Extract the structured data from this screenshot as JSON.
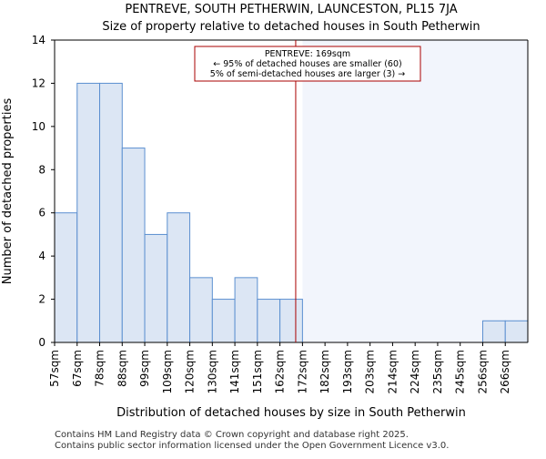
{
  "chart_data": {
    "type": "bar",
    "title": "PENTREVE, SOUTH PETHERWIN, LAUNCESTON, PL15 7JA",
    "subtitle": "Size of property relative to detached houses in South Petherwin",
    "xlabel": "Distribution of detached houses by size in South Petherwin",
    "ylabel": "Number of detached properties",
    "categories": [
      "57sqm",
      "67sqm",
      "78sqm",
      "88sqm",
      "99sqm",
      "109sqm",
      "120sqm",
      "130sqm",
      "141sqm",
      "151sqm",
      "162sqm",
      "172sqm",
      "182sqm",
      "193sqm",
      "203sqm",
      "214sqm",
      "224sqm",
      "235sqm",
      "245sqm",
      "256sqm",
      "266sqm"
    ],
    "values": [
      6,
      12,
      12,
      9,
      5,
      6,
      3,
      2,
      3,
      2,
      2,
      0,
      0,
      0,
      0,
      0,
      0,
      0,
      0,
      1,
      1
    ],
    "ylim": [
      0,
      14
    ],
    "yticks": [
      "0",
      "2",
      "4",
      "6",
      "8",
      "10",
      "12",
      "14"
    ],
    "grid": false,
    "marker_value_sqm": 169,
    "highlight_from_category": "172sqm",
    "colors": {
      "bar_fill": "#dce6f4",
      "bar_stroke": "#5b8fd0",
      "highlight_fill": "#f2f5fc",
      "marker_line": "#aa0000",
      "annotation_border": "#aa0000"
    },
    "annotation": {
      "line1": "PENTREVE: 169sqm",
      "line2": "← 95% of detached houses are smaller (60)",
      "line3": "5% of semi-detached houses are larger (3) →"
    }
  },
  "footer": {
    "line1": "Contains HM Land Registry data © Crown copyright and database right 2025.",
    "line2": "Contains public sector information licensed under the Open Government Licence v3.0."
  }
}
